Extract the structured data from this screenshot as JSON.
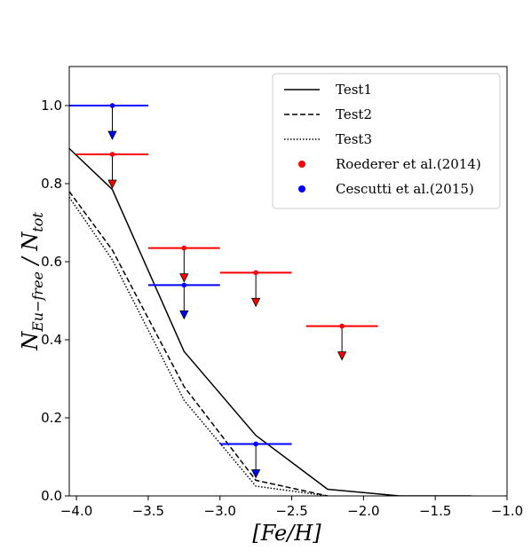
{
  "chart_data": {
    "type": "line",
    "title": "",
    "xlabel": "[Fe/H]",
    "ylabel": "N_{Eu-free} / N_{tot}",
    "xlim": [
      -4.05,
      -1.0
    ],
    "ylim": [
      0.0,
      1.1
    ],
    "xticks": [
      -4.0,
      -3.5,
      -3.0,
      -2.5,
      -2.0,
      -1.5,
      -1.0
    ],
    "xtick_labels": [
      "−4.0",
      "−3.5",
      "−3.0",
      "−2.5",
      "−2.0",
      "−1.5",
      "−1.0"
    ],
    "yticks": [
      0.0,
      0.2,
      0.4,
      0.6,
      0.8,
      1.0
    ],
    "ytick_labels": [
      "0.0",
      "0.2",
      "0.4",
      "0.6",
      "0.8",
      "1.0"
    ],
    "grid": false,
    "legend_position": "top-right",
    "series": [
      {
        "name": "Test1",
        "style": "solid",
        "color": "#000000",
        "x": [
          -4.05,
          -3.75,
          -3.25,
          -2.75,
          -2.25,
          -1.75,
          -1.25
        ],
        "y": [
          0.89,
          0.785,
          0.37,
          0.155,
          0.017,
          0.0,
          0.0
        ]
      },
      {
        "name": "Test2",
        "style": "dashed",
        "color": "#000000",
        "x": [
          -4.05,
          -3.75,
          -3.25,
          -2.75,
          -2.25
        ],
        "y": [
          0.78,
          0.63,
          0.28,
          0.04,
          0.0
        ]
      },
      {
        "name": "Test3",
        "style": "dotted",
        "color": "#000000",
        "x": [
          -4.05,
          -3.75,
          -3.25,
          -2.75,
          -2.25
        ],
        "y": [
          0.765,
          0.605,
          0.245,
          0.025,
          0.0
        ]
      }
    ],
    "upper_limits": [
      {
        "name": "Roederer et al.(2014)",
        "color": "#ff0000",
        "points": [
          {
            "x": -3.75,
            "y": 0.875,
            "xmin": -4.0,
            "xmax": -3.5
          },
          {
            "x": -3.25,
            "y": 0.635,
            "xmin": -3.5,
            "xmax": -3.0
          },
          {
            "x": -2.75,
            "y": 0.572,
            "xmin": -3.0,
            "xmax": -2.5
          },
          {
            "x": -2.15,
            "y": 0.435,
            "xmin": -2.4,
            "xmax": -1.9
          }
        ]
      },
      {
        "name": "Cescutti et al.(2015)",
        "color": "#0000ff",
        "points": [
          {
            "x": -3.75,
            "y": 1.0,
            "xmin": -4.05,
            "xmax": -3.5
          },
          {
            "x": -3.25,
            "y": 0.54,
            "xmin": -3.5,
            "xmax": -3.0
          },
          {
            "x": -2.75,
            "y": 0.133,
            "xmin": -3.0,
            "xmax": -2.5
          }
        ]
      }
    ],
    "legend": [
      "Test1",
      "Test2",
      "Test3",
      "Roederer et al.(2014)",
      "Cescutti et al.(2015)"
    ]
  }
}
